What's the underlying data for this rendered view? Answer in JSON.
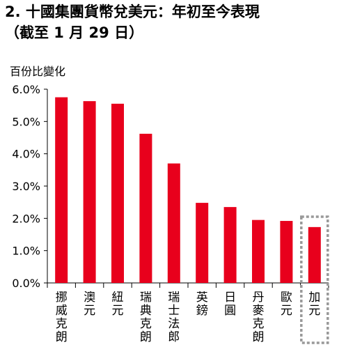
{
  "title": {
    "line1": "2. 十國集團貨幣兌美元：年初至今表現",
    "line2": "（截至 1 月 29 日）"
  },
  "chart_data": {
    "type": "bar",
    "ylabel": "百份比變化",
    "ylim": [
      0,
      6
    ],
    "yticks": [
      "0.0%",
      "1.0%",
      "2.0%",
      "3.0%",
      "4.0%",
      "5.0%",
      "6.0%"
    ],
    "categories": [
      "挪威克朗",
      "澳元",
      "紐元",
      "瑞典克朗",
      "瑞士法郎",
      "英鎊",
      "日圓",
      "丹麥克朗",
      "歐元",
      "加元"
    ],
    "values": [
      5.75,
      5.63,
      5.55,
      4.62,
      3.7,
      2.48,
      2.35,
      1.95,
      1.92,
      1.73
    ],
    "bar_color": "#e8001c",
    "highlighted": "加元",
    "grid": false
  }
}
